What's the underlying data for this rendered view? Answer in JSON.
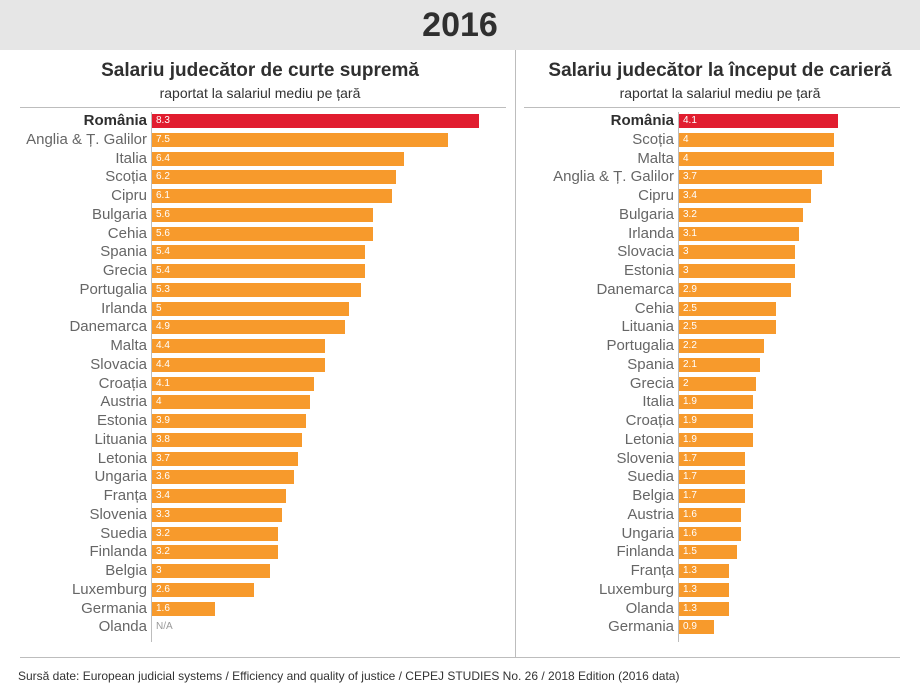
{
  "header": {
    "year": "2016"
  },
  "left": {
    "title": "Salariu judecător de curte supremă",
    "subtitle": "raportat la salariul mediu pe țară"
  },
  "right": {
    "title": "Salariu judecător la început de carieră",
    "subtitle": "raportat la salariul mediu pe țară"
  },
  "colors": {
    "bar": "#f79a2c",
    "highlight": "#e11d2f"
  },
  "chart_data": [
    {
      "type": "bar",
      "orientation": "horizontal",
      "title": "Salariu judecător de curte supremă",
      "subtitle": "raportat la salariul mediu pe țară",
      "highlight": "România",
      "categories": [
        "România",
        "Anglia & Ț. Galilor",
        "Italia",
        "Scoția",
        "Cipru",
        "Bulgaria",
        "Cehia",
        "Spania",
        "Grecia",
        "Portugalia",
        "Irlanda",
        "Danemarca",
        "Malta",
        "Slovacia",
        "Croația",
        "Austria",
        "Estonia",
        "Lituania",
        "Letonia",
        "Ungaria",
        "Franța",
        "Slovenia",
        "Suedia",
        "Finlanda",
        "Belgia",
        "Luxemburg",
        "Germania",
        "Olanda"
      ],
      "values": [
        8.3,
        7.5,
        6.4,
        6.2,
        6.1,
        5.6,
        5.6,
        5.4,
        5.4,
        5.3,
        5,
        4.9,
        4.4,
        4.4,
        4.1,
        4,
        3.9,
        3.8,
        3.7,
        3.6,
        3.4,
        3.3,
        3.2,
        3.2,
        3,
        2.6,
        1.6,
        null
      ],
      "labels": [
        "8.3",
        "7.5",
        "6.4",
        "6.2",
        "6.1",
        "5.6",
        "5.6",
        "5.4",
        "5.4",
        "5.3",
        "5",
        "4.9",
        "4.4",
        "4.4",
        "4.1",
        "4",
        "3.9",
        "3.8",
        "3.7",
        "3.6",
        "3.4",
        "3.3",
        "3.2",
        "3.2",
        "3",
        "2.6",
        "1.6",
        "N/A"
      ]
    },
    {
      "type": "bar",
      "orientation": "horizontal",
      "title": "Salariu judecător la început de carieră",
      "subtitle": "raportat la salariul mediu pe țară",
      "highlight": "România",
      "categories": [
        "România",
        "Scoția",
        "Malta",
        "Anglia & Ț. Galilor",
        "Cipru",
        "Bulgaria",
        "Irlanda",
        "Slovacia",
        "Estonia",
        "Danemarca",
        "Cehia",
        "Lituania",
        "Portugalia",
        "Spania",
        "Grecia",
        "Italia",
        "Croația",
        "Letonia",
        "Slovenia",
        "Suedia",
        "Belgia",
        "Austria",
        "Ungaria",
        "Finlanda",
        "Franța",
        "Luxemburg",
        "Olanda",
        "Germania"
      ],
      "values": [
        4.1,
        4,
        4,
        3.7,
        3.4,
        3.2,
        3.1,
        3,
        3,
        2.9,
        2.5,
        2.5,
        2.2,
        2.1,
        2,
        1.9,
        1.9,
        1.9,
        1.7,
        1.7,
        1.7,
        1.6,
        1.6,
        1.5,
        1.3,
        1.3,
        1.3,
        0.9
      ],
      "labels": [
        "4.1",
        "4",
        "4",
        "3.7",
        "3.4",
        "3.2",
        "3.1",
        "3",
        "3",
        "2.9",
        "2.5",
        "2.5",
        "2.2",
        "2.1",
        "2",
        "1.9",
        "1.9",
        "1.9",
        "1.7",
        "1.7",
        "1.7",
        "1.6",
        "1.6",
        "1.5",
        "1.3",
        "1.3",
        "1.3",
        "0.9"
      ]
    }
  ],
  "footer": {
    "source": "Sursă date: European judicial systems / Efficiency and quality of justice / CEPEJ STUDIES No. 26 / 2018 Edition (2016 data)"
  }
}
